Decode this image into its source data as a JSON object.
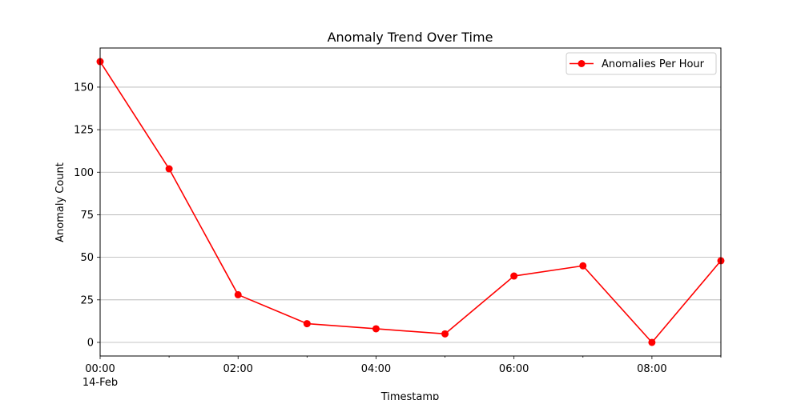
{
  "chart_data": {
    "type": "line",
    "title": "Anomaly Trend Over Time",
    "xlabel": "Timestamp",
    "ylabel": "Anomaly Count",
    "x": [
      "14-Feb 00:00",
      "14-Feb 01:00",
      "14-Feb 02:00",
      "14-Feb 03:00",
      "14-Feb 04:00",
      "14-Feb 05:00",
      "14-Feb 06:00",
      "14-Feb 07:00",
      "14-Feb 08:00",
      "14-Feb 09:00"
    ],
    "series": [
      {
        "name": "Anomalies Per Hour",
        "values": [
          165,
          102,
          28,
          11,
          8,
          5,
          39,
          45,
          0,
          48
        ],
        "color": "#ff0000",
        "marker": "circle"
      }
    ],
    "ylim": [
      -8,
      173
    ],
    "yticks": [
      "0",
      "25",
      "50",
      "75",
      "100",
      "125",
      "150"
    ],
    "xticks": [
      {
        "time": "00:00",
        "date": "14-Feb"
      },
      {
        "time": "02:00",
        "date": ""
      },
      {
        "time": "04:00",
        "date": ""
      },
      {
        "time": "06:00",
        "date": ""
      },
      {
        "time": "08:00",
        "date": ""
      }
    ],
    "grid": "y-major",
    "legend": "top-right"
  }
}
